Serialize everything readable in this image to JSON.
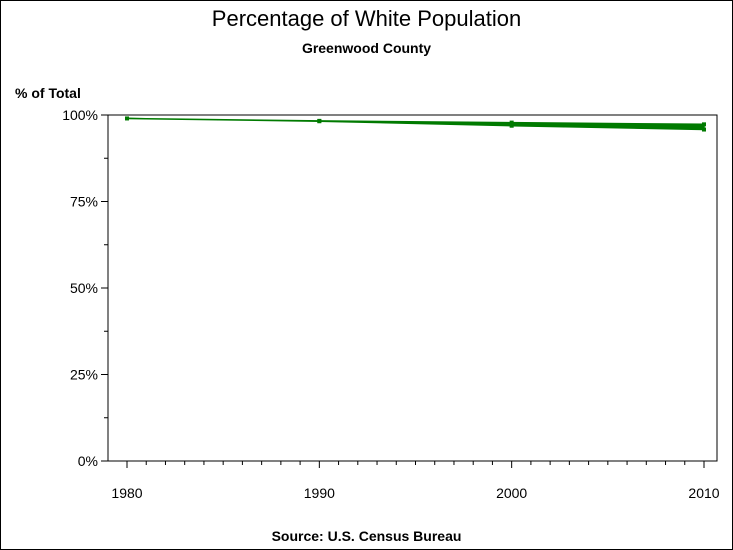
{
  "header": {
    "title": "Percentage of White Population",
    "subtitle": "Greenwood County"
  },
  "footer": {
    "source": "Source: U.S. Census Bureau"
  },
  "colors": {
    "series": "#007a00",
    "axis": "#000000"
  },
  "chart_data": {
    "type": "line",
    "title": "Percentage of White Population",
    "subtitle": "Greenwood County",
    "xlabel": "",
    "ylabel": "% of Total",
    "xlim": [
      1980,
      2010
    ],
    "ylim": [
      0,
      100
    ],
    "x_ticks": [
      "1980",
      "1990",
      "2000",
      "2010"
    ],
    "y_ticks": [
      "0%",
      "25%",
      "50%",
      "75%",
      "100%"
    ],
    "grid": false,
    "series": [
      {
        "x": [
          1980,
          1990,
          2000,
          2010
        ],
        "y_high": [
          99.0,
          98.3,
          97.8,
          97.3
        ],
        "y_low": [
          99.0,
          98.2,
          96.9,
          95.8
        ]
      }
    ]
  }
}
